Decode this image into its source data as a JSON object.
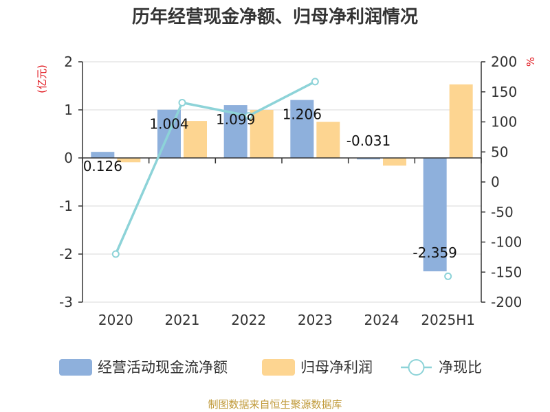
{
  "title": "历年经营现金净额、归母净利润情况",
  "source": "制图数据来自恒生聚源数据库",
  "colors": {
    "cash": "#8eb0dc",
    "profit": "#fdd591",
    "ratio": "#8dd3d8",
    "unit": "#e0151c",
    "zero_line": "#333333",
    "axis": "#333333",
    "source": "#c09a3a"
  },
  "chart_data": {
    "type": "bar",
    "categories": [
      "2020",
      "2021",
      "2022",
      "2023",
      "2024",
      "2025H1"
    ],
    "left_axis": {
      "unit": "(亿元)",
      "ylim": [
        -3,
        2
      ],
      "ticks": [
        "2",
        "1",
        "0",
        "-1",
        "-2",
        "-3"
      ]
    },
    "right_axis": {
      "unit": "%",
      "ylim": [
        -200,
        200
      ],
      "ticks": [
        "200",
        "150",
        "100",
        "50",
        "0",
        "-50",
        "-100",
        "-150",
        "-200"
      ]
    },
    "grid": true,
    "legend_position": "bottom",
    "series": [
      {
        "name": "经营活动现金流净额",
        "type": "bar",
        "axis": "left",
        "values": [
          0.126,
          1.004,
          1.099,
          1.206,
          -0.031,
          -2.359
        ],
        "labels": [
          "0.126",
          "1.004",
          "1.099",
          "1.206",
          "-0.031",
          "-2.359"
        ]
      },
      {
        "name": "归母净利润",
        "type": "bar",
        "axis": "left",
        "values": [
          -0.09,
          0.77,
          1.0,
          0.75,
          -0.16,
          1.53
        ]
      },
      {
        "name": "净现比",
        "type": "line",
        "axis": "right",
        "values": [
          -120,
          132,
          110,
          167,
          null,
          -157
        ]
      }
    ]
  }
}
